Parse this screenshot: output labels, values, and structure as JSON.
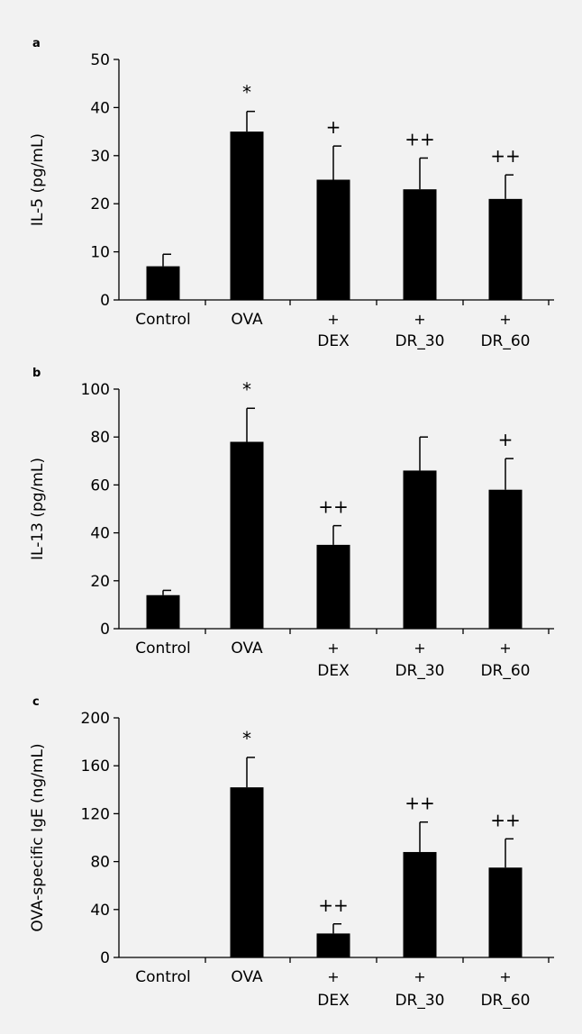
{
  "colors": {
    "background": "#f2f2f2",
    "bar": "#000000",
    "axis": "#000000"
  },
  "chart_data": [
    {
      "panel_label": "a",
      "type": "bar",
      "ylabel": "IL-5 (pg/mL)",
      "ylim": [
        0,
        50
      ],
      "yticks": [
        0,
        10,
        20,
        30,
        40,
        50
      ],
      "ytick_labels": [
        "0",
        "10",
        "20",
        "30",
        "40",
        "50"
      ],
      "categories": [
        [
          "Control"
        ],
        [
          "OVA"
        ],
        [
          "+",
          "DEX"
        ],
        [
          "+",
          "DR_30"
        ],
        [
          "+",
          "DR_60"
        ]
      ],
      "values": [
        7,
        35,
        25,
        23,
        21
      ],
      "errors": [
        2.5,
        4.2,
        7,
        6.5,
        5
      ],
      "annotations": [
        "",
        "*",
        "+",
        "++",
        "++"
      ]
    },
    {
      "panel_label": "b",
      "type": "bar",
      "ylabel": "IL-13 (pg/mL)",
      "ylim": [
        0,
        100
      ],
      "yticks": [
        0,
        20,
        40,
        60,
        80,
        100
      ],
      "ytick_labels": [
        "0",
        "20",
        "40",
        "60",
        "80",
        "100"
      ],
      "categories": [
        [
          "Control"
        ],
        [
          "OVA"
        ],
        [
          "+",
          "DEX"
        ],
        [
          "+",
          "DR_30"
        ],
        [
          "+",
          "DR_60"
        ]
      ],
      "values": [
        14,
        78,
        35,
        66,
        58
      ],
      "errors": [
        2,
        14,
        8,
        14,
        13
      ],
      "annotations": [
        "",
        "*",
        "++",
        "",
        "+"
      ]
    },
    {
      "panel_label": "c",
      "type": "bar",
      "ylabel": "OVA-specific IgE (ng/mL)",
      "ylim": [
        0,
        200
      ],
      "yticks": [
        0,
        40,
        80,
        120,
        160,
        200
      ],
      "ytick_labels": [
        "0",
        "40",
        "80",
        "120",
        "160",
        "200"
      ],
      "categories": [
        [
          "Control"
        ],
        [
          "OVA"
        ],
        [
          "+",
          "DEX"
        ],
        [
          "+",
          "DR_30"
        ],
        [
          "+",
          "DR_60"
        ]
      ],
      "values": [
        0,
        142,
        20,
        88,
        75
      ],
      "errors": [
        0,
        25,
        8,
        25,
        24
      ],
      "annotations": [
        "",
        "*",
        "++",
        "++",
        "++"
      ]
    }
  ]
}
